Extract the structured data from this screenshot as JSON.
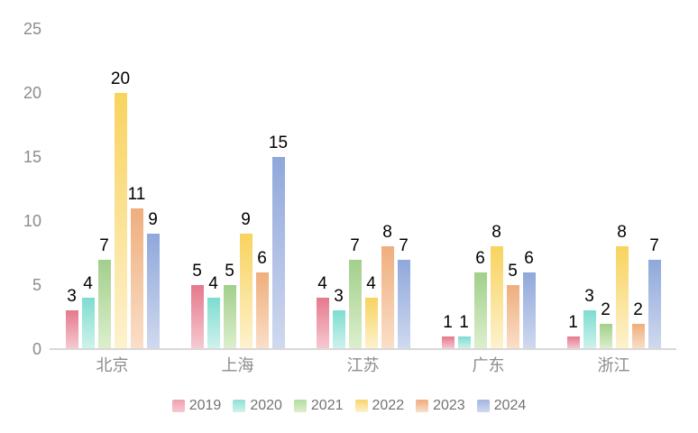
{
  "chart_data": {
    "type": "bar",
    "title": "",
    "xlabel": "",
    "ylabel": "",
    "categories": [
      "北京",
      "上海",
      "江苏",
      "广东",
      "浙江"
    ],
    "series": [
      {
        "name": "2019",
        "values": [
          3,
          5,
          4,
          1,
          1
        ],
        "color": "#E5798C",
        "color_light": "#F6CAD2",
        "legend_color": "#EF9FAE"
      },
      {
        "name": "2020",
        "values": [
          4,
          4,
          3,
          1,
          3
        ],
        "color": "#7EDCD0",
        "color_light": "#CFF3EC",
        "legend_color": "#8FE0D4"
      },
      {
        "name": "2021",
        "values": [
          7,
          5,
          7,
          6,
          2
        ],
        "color": "#A2CF8B",
        "color_light": "#DDEFCE",
        "legend_color": "#B2DC9E"
      },
      {
        "name": "2022",
        "values": [
          20,
          9,
          4,
          8,
          8
        ],
        "color": "#F8D35E",
        "color_light": "#FDF2CF",
        "legend_color": "#F8D468"
      },
      {
        "name": "2023",
        "values": [
          11,
          6,
          8,
          5,
          2
        ],
        "color": "#EFAE7D",
        "color_light": "#FADFC9",
        "legend_color": "#EEAC7E"
      },
      {
        "name": "2024",
        "values": [
          9,
          15,
          7,
          6,
          7
        ],
        "color": "#8FA8DB",
        "color_light": "#D0D9EF",
        "legend_color": "#A2B5E0"
      }
    ],
    "ylim": [
      0,
      25
    ],
    "yticks": [
      0,
      5,
      10,
      15,
      20,
      25
    ],
    "grid": false,
    "legend_position": "bottom",
    "value_labels": true
  },
  "style": {
    "tick_label_color": "#8C8C8C",
    "category_label_color": "#8C8C8C",
    "legend_label_color": "#737373",
    "value_label_color": "#000000",
    "axis_line_color": "#D9D9D9",
    "background": "#FFFFFF"
  }
}
